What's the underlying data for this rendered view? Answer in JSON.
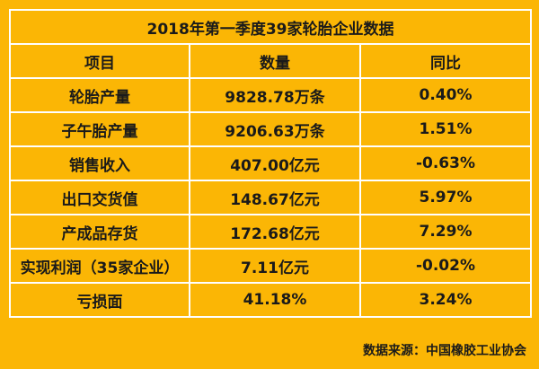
{
  "table": {
    "title": "2018年第一季度39家轮胎企业数据",
    "header": [
      "项目",
      "数量",
      "同比"
    ],
    "rows": [
      [
        "轮胎产量",
        "9828.78万条",
        "0.40%"
      ],
      [
        "子午胎产量",
        "9206.63万条",
        "1.51%"
      ],
      [
        "销售收入",
        "407.00亿元",
        "-0.63%"
      ],
      [
        "出口交货值",
        "148.67亿元",
        "5.97%"
      ],
      [
        "产成品存货",
        "172.68亿元",
        "7.29%"
      ],
      [
        "实现利润（35家企业）",
        "7.11亿元",
        "-0.02%"
      ],
      [
        "亏损面",
        "41.18%",
        "3.24%"
      ]
    ]
  },
  "source": "数据来源：中国橡胶工业协会"
}
